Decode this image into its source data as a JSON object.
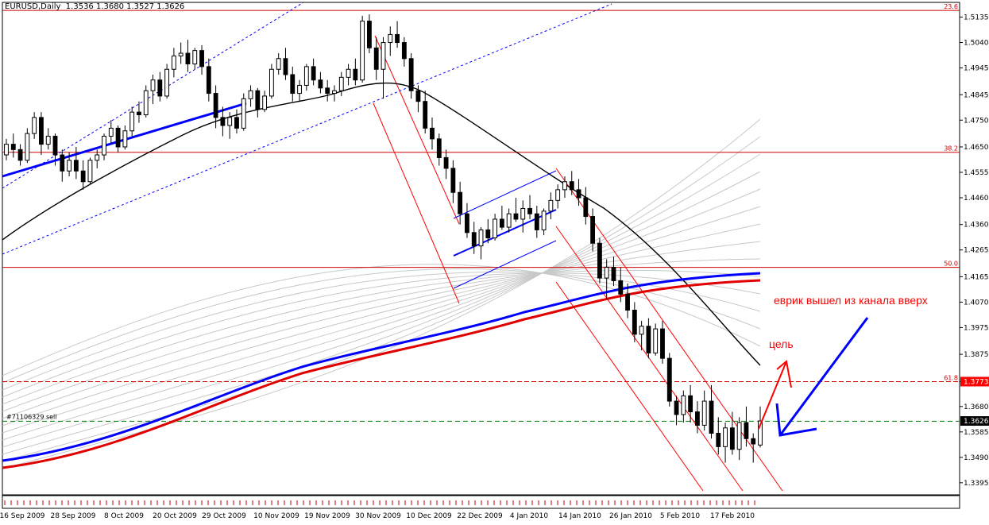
{
  "header": {
    "symbol": "EURUSD,Daily",
    "ohlc": "1.3536 1.3680 1.3527 1.3626"
  },
  "chart_data": {
    "type": "candlestick",
    "symbol": "EURUSD",
    "timeframe": "Daily",
    "ylim": [
      1.335,
      1.519
    ],
    "y_ticks": [
      "1.5135",
      "1.5040",
      "1.4945",
      "1.4845",
      "1.4750",
      "1.4650",
      "1.4555",
      "1.4460",
      "1.4360",
      "1.4265",
      "1.4165",
      "1.4070",
      "1.3975",
      "1.3875",
      "1.3773",
      "1.3680",
      "1.3585",
      "1.3490",
      "1.3395"
    ],
    "x_ticks": [
      "16 Sep 2009",
      "28 Sep 2009",
      "8 Oct 2009",
      "20 Oct 2009",
      "29 Oct 2009",
      "10 Nov 2009",
      "19 Nov 2009",
      "30 Nov 2009",
      "10 Dec 2009",
      "22 Dec 2009",
      "4 Jan 2010",
      "14 Jan 2010",
      "26 Jan 2010",
      "5 Feb 2010",
      "17 Feb 2010"
    ],
    "price_tags": [
      {
        "label": "1.3773",
        "price": 1.3773,
        "color": "#ff0000"
      },
      {
        "label": "1.3626",
        "price": 1.3626,
        "color": "#000000"
      }
    ],
    "fibonacci": [
      {
        "label": "23.6",
        "price": 1.516
      },
      {
        "label": "38.2",
        "price": 1.463
      },
      {
        "label": "50.0",
        "price": 1.42
      },
      {
        "label": "61.8",
        "price": 1.3773
      }
    ],
    "order_line": {
      "label": "#71106329 sell",
      "price": 1.3625
    },
    "annotations": {
      "breakout": "еврик вышел из канала вверх",
      "target": "цель"
    },
    "candles_ohlc": [
      [
        1.462,
        1.468,
        1.46,
        1.466
      ],
      [
        1.466,
        1.47,
        1.461,
        1.464
      ],
      [
        1.464,
        1.466,
        1.458,
        1.46
      ],
      [
        1.46,
        1.472,
        1.459,
        1.47
      ],
      [
        1.47,
        1.478,
        1.468,
        1.476
      ],
      [
        1.476,
        1.478,
        1.462,
        1.466
      ],
      [
        1.466,
        1.472,
        1.464,
        1.469
      ],
      [
        1.469,
        1.47,
        1.458,
        1.462
      ],
      [
        1.462,
        1.464,
        1.452,
        1.456
      ],
      [
        1.456,
        1.463,
        1.454,
        1.46
      ],
      [
        1.46,
        1.465,
        1.453,
        1.456
      ],
      [
        1.456,
        1.46,
        1.449,
        1.452
      ],
      [
        1.452,
        1.461,
        1.451,
        1.46
      ],
      [
        1.46,
        1.464,
        1.457,
        1.462
      ],
      [
        1.462,
        1.47,
        1.46,
        1.469
      ],
      [
        1.469,
        1.475,
        1.466,
        1.472
      ],
      [
        1.472,
        1.473,
        1.463,
        1.465
      ],
      [
        1.465,
        1.473,
        1.464,
        1.471
      ],
      [
        1.471,
        1.48,
        1.469,
        1.478
      ],
      [
        1.478,
        1.482,
        1.474,
        1.477
      ],
      [
        1.477,
        1.488,
        1.476,
        1.486
      ],
      [
        1.486,
        1.492,
        1.481,
        1.49
      ],
      [
        1.49,
        1.493,
        1.482,
        1.484
      ],
      [
        1.484,
        1.496,
        1.483,
        1.494
      ],
      [
        1.494,
        1.502,
        1.491,
        1.499
      ],
      [
        1.499,
        1.504,
        1.496,
        1.5
      ],
      [
        1.5,
        1.505,
        1.493,
        1.496
      ],
      [
        1.496,
        1.502,
        1.494,
        1.501
      ],
      [
        1.501,
        1.503,
        1.492,
        1.495
      ],
      [
        1.495,
        1.498,
        1.482,
        1.485
      ],
      [
        1.485,
        1.488,
        1.472,
        1.476
      ],
      [
        1.476,
        1.48,
        1.469,
        1.473
      ],
      [
        1.473,
        1.478,
        1.468,
        1.476
      ],
      [
        1.476,
        1.479,
        1.47,
        1.472
      ],
      [
        1.472,
        1.485,
        1.471,
        1.483
      ],
      [
        1.483,
        1.488,
        1.48,
        1.486
      ],
      [
        1.486,
        1.487,
        1.476,
        1.479
      ],
      [
        1.479,
        1.486,
        1.478,
        1.484
      ],
      [
        1.484,
        1.496,
        1.483,
        1.494
      ],
      [
        1.494,
        1.5,
        1.492,
        1.498
      ],
      [
        1.498,
        1.502,
        1.49,
        1.492
      ],
      [
        1.492,
        1.495,
        1.482,
        1.485
      ],
      [
        1.485,
        1.49,
        1.482,
        1.488
      ],
      [
        1.488,
        1.496,
        1.486,
        1.495
      ],
      [
        1.495,
        1.498,
        1.488,
        1.49
      ],
      [
        1.49,
        1.493,
        1.485,
        1.487
      ],
      [
        1.487,
        1.49,
        1.482,
        1.485
      ],
      [
        1.485,
        1.488,
        1.482,
        1.486
      ],
      [
        1.486,
        1.493,
        1.484,
        1.491
      ],
      [
        1.491,
        1.496,
        1.488,
        1.494
      ],
      [
        1.494,
        1.498,
        1.488,
        1.49
      ],
      [
        1.49,
        1.514,
        1.489,
        1.512
      ],
      [
        1.512,
        1.5145,
        1.5,
        1.502
      ],
      [
        1.502,
        1.506,
        1.49,
        1.494
      ],
      [
        1.494,
        1.506,
        1.483,
        1.504
      ],
      [
        1.504,
        1.51,
        1.499,
        1.507
      ],
      [
        1.507,
        1.512,
        1.502,
        1.504
      ],
      [
        1.504,
        1.506,
        1.495,
        1.498
      ],
      [
        1.498,
        1.5,
        1.483,
        1.486
      ],
      [
        1.486,
        1.488,
        1.478,
        1.482
      ],
      [
        1.482,
        1.486,
        1.47,
        1.472
      ],
      [
        1.472,
        1.476,
        1.464,
        1.468
      ],
      [
        1.468,
        1.47,
        1.458,
        1.461
      ],
      [
        1.461,
        1.464,
        1.453,
        1.457
      ],
      [
        1.457,
        1.46,
        1.444,
        1.448
      ],
      [
        1.448,
        1.452,
        1.436,
        1.44
      ],
      [
        1.44,
        1.444,
        1.431,
        1.433
      ],
      [
        1.433,
        1.437,
        1.425,
        1.428
      ],
      [
        1.428,
        1.435,
        1.423,
        1.434
      ],
      [
        1.434,
        1.438,
        1.429,
        1.431
      ],
      [
        1.431,
        1.44,
        1.43,
        1.438
      ],
      [
        1.438,
        1.443,
        1.434,
        1.435
      ],
      [
        1.435,
        1.442,
        1.433,
        1.44
      ],
      [
        1.44,
        1.446,
        1.437,
        1.438
      ],
      [
        1.438,
        1.445,
        1.433,
        1.442
      ],
      [
        1.442,
        1.447,
        1.438,
        1.44
      ],
      [
        1.44,
        1.443,
        1.431,
        1.434
      ],
      [
        1.434,
        1.442,
        1.432,
        1.441
      ],
      [
        1.441,
        1.448,
        1.438,
        1.445
      ],
      [
        1.445,
        1.451,
        1.442,
        1.449
      ],
      [
        1.449,
        1.454,
        1.446,
        1.452
      ],
      [
        1.452,
        1.456,
        1.447,
        1.449
      ],
      [
        1.449,
        1.453,
        1.443,
        1.446
      ],
      [
        1.446,
        1.45,
        1.436,
        1.439
      ],
      [
        1.439,
        1.442,
        1.426,
        1.429
      ],
      [
        1.429,
        1.431,
        1.414,
        1.416
      ],
      [
        1.416,
        1.423,
        1.408,
        1.42
      ],
      [
        1.42,
        1.424,
        1.413,
        1.415
      ],
      [
        1.415,
        1.42,
        1.407,
        1.41
      ],
      [
        1.41,
        1.414,
        1.401,
        1.404
      ],
      [
        1.404,
        1.407,
        1.392,
        1.395
      ],
      [
        1.395,
        1.4,
        1.389,
        1.398
      ],
      [
        1.398,
        1.401,
        1.386,
        1.388
      ],
      [
        1.388,
        1.399,
        1.387,
        1.397
      ],
      [
        1.397,
        1.4,
        1.384,
        1.386
      ],
      [
        1.386,
        1.388,
        1.368,
        1.37
      ],
      [
        1.37,
        1.372,
        1.361,
        1.365
      ],
      [
        1.365,
        1.374,
        1.362,
        1.372
      ],
      [
        1.372,
        1.376,
        1.362,
        1.366
      ],
      [
        1.366,
        1.37,
        1.358,
        1.361
      ],
      [
        1.361,
        1.374,
        1.359,
        1.37
      ],
      [
        1.37,
        1.376,
        1.356,
        1.358
      ],
      [
        1.358,
        1.364,
        1.35,
        1.353
      ],
      [
        1.353,
        1.362,
        1.347,
        1.36
      ],
      [
        1.36,
        1.366,
        1.35,
        1.352
      ],
      [
        1.352,
        1.364,
        1.348,
        1.362
      ],
      [
        1.362,
        1.368,
        1.353,
        1.356
      ],
      [
        1.356,
        1.358,
        1.347,
        1.354
      ],
      [
        1.3536,
        1.368,
        1.3527,
        1.3626
      ]
    ]
  }
}
